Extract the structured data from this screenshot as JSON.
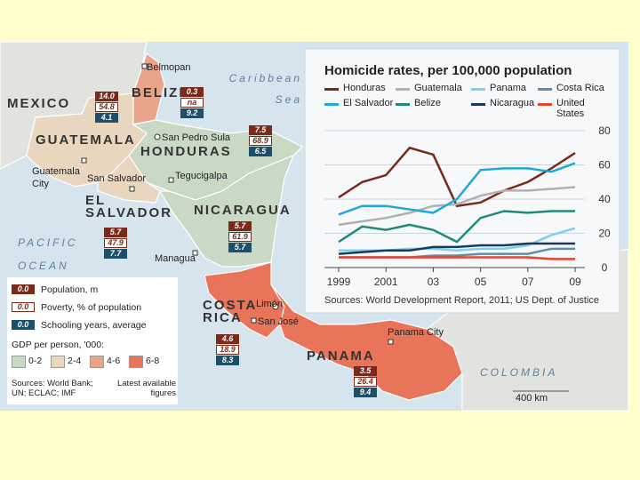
{
  "map": {
    "places": [
      "MEXICO",
      "BELIZE",
      "Belmopan",
      "Caribbean Sea",
      "GUATEMALA",
      "Guatemala City",
      "San Pedro Sula",
      "HONDURAS",
      "Tegucigalpa",
      "San Salvador",
      "EL SALVADOR",
      "NICARAGUA",
      "Managua",
      "PACIFIC OCEAN",
      "Limón",
      "COSTA RICA",
      "San José",
      "Panama City",
      "PANAMA",
      "COLOMBIA",
      "400 km"
    ],
    "countries": [
      {
        "name": "GUATEMALA",
        "population": "14.0",
        "poverty": "54.8",
        "schooling": "4.1"
      },
      {
        "name": "BELIZE",
        "population": "0.3",
        "poverty": "na",
        "schooling": "9.2"
      },
      {
        "name": "HONDURAS",
        "population": "7.5",
        "poverty": "68.9",
        "schooling": "6.5"
      },
      {
        "name": "EL SALVADOR",
        "population": "5.7",
        "poverty": "47.9",
        "schooling": "7.7"
      },
      {
        "name": "NICARAGUA",
        "population": "5.7",
        "poverty": "61.9",
        "schooling": "5.7"
      },
      {
        "name": "COSTA RICA",
        "population": "4.6",
        "poverty": "18.9",
        "schooling": "8.3"
      },
      {
        "name": "PANAMA",
        "population": "3.5",
        "poverty": "26.4",
        "schooling": "9.4"
      }
    ],
    "legend": {
      "sample": "0.0",
      "population": "Population, m",
      "poverty": "Poverty, % of population",
      "schooling": "Schooling years, average",
      "gdp_title": "GDP per person, '000:",
      "gdp_classes": [
        "0-2",
        "2-4",
        "4-6",
        "6-8"
      ],
      "sources": "Sources: World Bank; UN; ECLAC; IMF",
      "note": "Latest available figures"
    }
  },
  "chart_data": {
    "type": "line",
    "title": "Homicide rates, per 100,000 population",
    "source": "Sources: World Development Report, 2011; US Dept. of Justice",
    "x": [
      1999,
      2000,
      2001,
      2002,
      2003,
      2004,
      2005,
      2006,
      2007,
      2008,
      2009
    ],
    "xlim": [
      1999,
      2009
    ],
    "xticks": [
      1999,
      2001,
      {
        "value": 2003,
        "label": "03"
      },
      {
        "value": 2005,
        "label": "05"
      },
      {
        "value": 2007,
        "label": "07"
      },
      {
        "value": 2009,
        "label": "09"
      }
    ],
    "ylim": [
      0,
      80
    ],
    "yticks": [
      0,
      20,
      40,
      60,
      80
    ],
    "grid": true,
    "series": [
      {
        "name": "Honduras",
        "color": "#7a2a1a",
        "values": [
          41,
          50,
          54,
          70,
          66,
          36,
          38,
          45,
          50,
          58,
          67
        ]
      },
      {
        "name": "Guatemala",
        "color": "#b0b0b0",
        "values": [
          25,
          27,
          29,
          32,
          36,
          37,
          42,
          45,
          45,
          46,
          47
        ]
      },
      {
        "name": "Panama",
        "color": "#7fd0ef",
        "values": [
          10,
          10,
          10,
          11,
          11,
          10,
          11,
          11,
          13,
          19,
          23
        ]
      },
      {
        "name": "Costa Rica",
        "color": "#5f8fa8",
        "values": [
          6,
          6,
          6,
          6,
          7,
          7,
          8,
          8,
          8,
          11,
          11
        ]
      },
      {
        "name": "El Salvador",
        "color": "#1fa8d8",
        "values": [
          31,
          36,
          36,
          34,
          32,
          40,
          57,
          58,
          58,
          56,
          61
        ]
      },
      {
        "name": "Belize",
        "color": "#1f8a7a",
        "values": [
          15,
          24,
          22,
          25,
          22,
          15,
          29,
          33,
          32,
          33,
          33
        ]
      },
      {
        "name": "Nicaragua",
        "color": "#1a3a5c",
        "values": [
          8,
          9,
          10,
          10,
          12,
          12,
          13,
          13,
          14,
          14,
          14
        ]
      },
      {
        "name": "United States",
        "color": "#e8442e",
        "values": [
          6,
          6,
          6,
          6,
          6,
          6,
          6,
          6,
          6,
          5,
          5
        ]
      }
    ]
  }
}
